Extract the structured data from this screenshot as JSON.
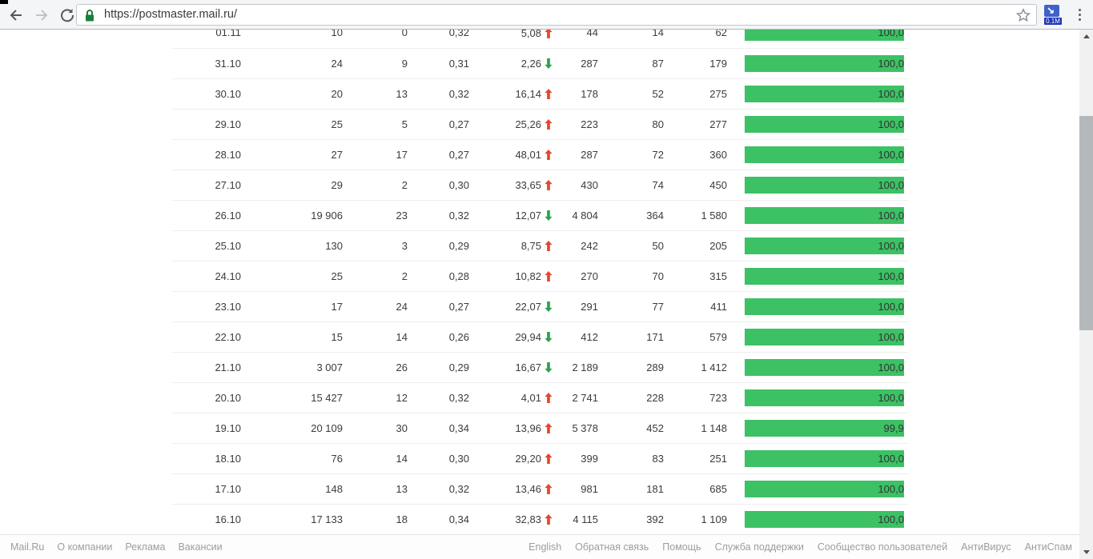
{
  "browser": {
    "url": "https://postmaster.mail.ru/",
    "extension_badge": "0.1M"
  },
  "colors": {
    "bar_green": "#3cc164",
    "trend_up": "#e2492f",
    "trend_down": "#2aa34d"
  },
  "table": {
    "rows": [
      {
        "date": "01.11",
        "c2": "10",
        "c3": "0",
        "c4": "0,32",
        "trend_value": "5,08",
        "trend": "up",
        "c6": "44",
        "c7": "14",
        "c8": "62",
        "bar_label": "100,0",
        "bar_percent": 100
      },
      {
        "date": "31.10",
        "c2": "24",
        "c3": "9",
        "c4": "0,31",
        "trend_value": "2,26",
        "trend": "down",
        "c6": "287",
        "c7": "87",
        "c8": "179",
        "bar_label": "100,0",
        "bar_percent": 100
      },
      {
        "date": "30.10",
        "c2": "20",
        "c3": "13",
        "c4": "0,32",
        "trend_value": "16,14",
        "trend": "up",
        "c6": "178",
        "c7": "52",
        "c8": "275",
        "bar_label": "100,0",
        "bar_percent": 100
      },
      {
        "date": "29.10",
        "c2": "25",
        "c3": "5",
        "c4": "0,27",
        "trend_value": "25,26",
        "trend": "up",
        "c6": "223",
        "c7": "80",
        "c8": "277",
        "bar_label": "100,0",
        "bar_percent": 100
      },
      {
        "date": "28.10",
        "c2": "27",
        "c3": "17",
        "c4": "0,27",
        "trend_value": "48,01",
        "trend": "up",
        "c6": "287",
        "c7": "72",
        "c8": "360",
        "bar_label": "100,0",
        "bar_percent": 100
      },
      {
        "date": "27.10",
        "c2": "29",
        "c3": "2",
        "c4": "0,30",
        "trend_value": "33,65",
        "trend": "up",
        "c6": "430",
        "c7": "74",
        "c8": "450",
        "bar_label": "100,0",
        "bar_percent": 100
      },
      {
        "date": "26.10",
        "c2": "19 906",
        "c3": "23",
        "c4": "0,32",
        "trend_value": "12,07",
        "trend": "down",
        "c6": "4 804",
        "c7": "364",
        "c8": "1 580",
        "bar_label": "100,0",
        "bar_percent": 100
      },
      {
        "date": "25.10",
        "c2": "130",
        "c3": "3",
        "c4": "0,29",
        "trend_value": "8,75",
        "trend": "up",
        "c6": "242",
        "c7": "50",
        "c8": "205",
        "bar_label": "100,0",
        "bar_percent": 100
      },
      {
        "date": "24.10",
        "c2": "25",
        "c3": "2",
        "c4": "0,28",
        "trend_value": "10,82",
        "trend": "up",
        "c6": "270",
        "c7": "70",
        "c8": "315",
        "bar_label": "100,0",
        "bar_percent": 100
      },
      {
        "date": "23.10",
        "c2": "17",
        "c3": "24",
        "c4": "0,27",
        "trend_value": "22,07",
        "trend": "down",
        "c6": "291",
        "c7": "77",
        "c8": "411",
        "bar_label": "100,0",
        "bar_percent": 100
      },
      {
        "date": "22.10",
        "c2": "15",
        "c3": "14",
        "c4": "0,26",
        "trend_value": "29,94",
        "trend": "down",
        "c6": "412",
        "c7": "171",
        "c8": "579",
        "bar_label": "100,0",
        "bar_percent": 100
      },
      {
        "date": "21.10",
        "c2": "3 007",
        "c3": "26",
        "c4": "0,29",
        "trend_value": "16,67",
        "trend": "down",
        "c6": "2 189",
        "c7": "289",
        "c8": "1 412",
        "bar_label": "100,0",
        "bar_percent": 100
      },
      {
        "date": "20.10",
        "c2": "15 427",
        "c3": "12",
        "c4": "0,32",
        "trend_value": "4,01",
        "trend": "up",
        "c6": "2 741",
        "c7": "228",
        "c8": "723",
        "bar_label": "100,0",
        "bar_percent": 100
      },
      {
        "date": "19.10",
        "c2": "20 109",
        "c3": "30",
        "c4": "0,34",
        "trend_value": "13,96",
        "trend": "up",
        "c6": "5 378",
        "c7": "452",
        "c8": "1 148",
        "bar_label": "99,9",
        "bar_percent": 99.9
      },
      {
        "date": "18.10",
        "c2": "76",
        "c3": "14",
        "c4": "0,30",
        "trend_value": "29,20",
        "trend": "up",
        "c6": "399",
        "c7": "83",
        "c8": "251",
        "bar_label": "100,0",
        "bar_percent": 100
      },
      {
        "date": "17.10",
        "c2": "148",
        "c3": "13",
        "c4": "0,32",
        "trend_value": "13,46",
        "trend": "up",
        "c6": "981",
        "c7": "181",
        "c8": "685",
        "bar_label": "100,0",
        "bar_percent": 100
      },
      {
        "date": "16.10",
        "c2": "17 133",
        "c3": "18",
        "c4": "0,34",
        "trend_value": "32,83",
        "trend": "up",
        "c6": "4 115",
        "c7": "392",
        "c8": "1 109",
        "bar_label": "100,0",
        "bar_percent": 100
      }
    ]
  },
  "footer": {
    "left_links": [
      "Mail.Ru",
      "О компании",
      "Реклама",
      "Вакансии"
    ],
    "right_links": [
      "English",
      "Обратная связь",
      "Помощь",
      "Служба поддержки",
      "Сообщество пользователей",
      "АнтиВирус",
      "АнтиСпам"
    ]
  }
}
